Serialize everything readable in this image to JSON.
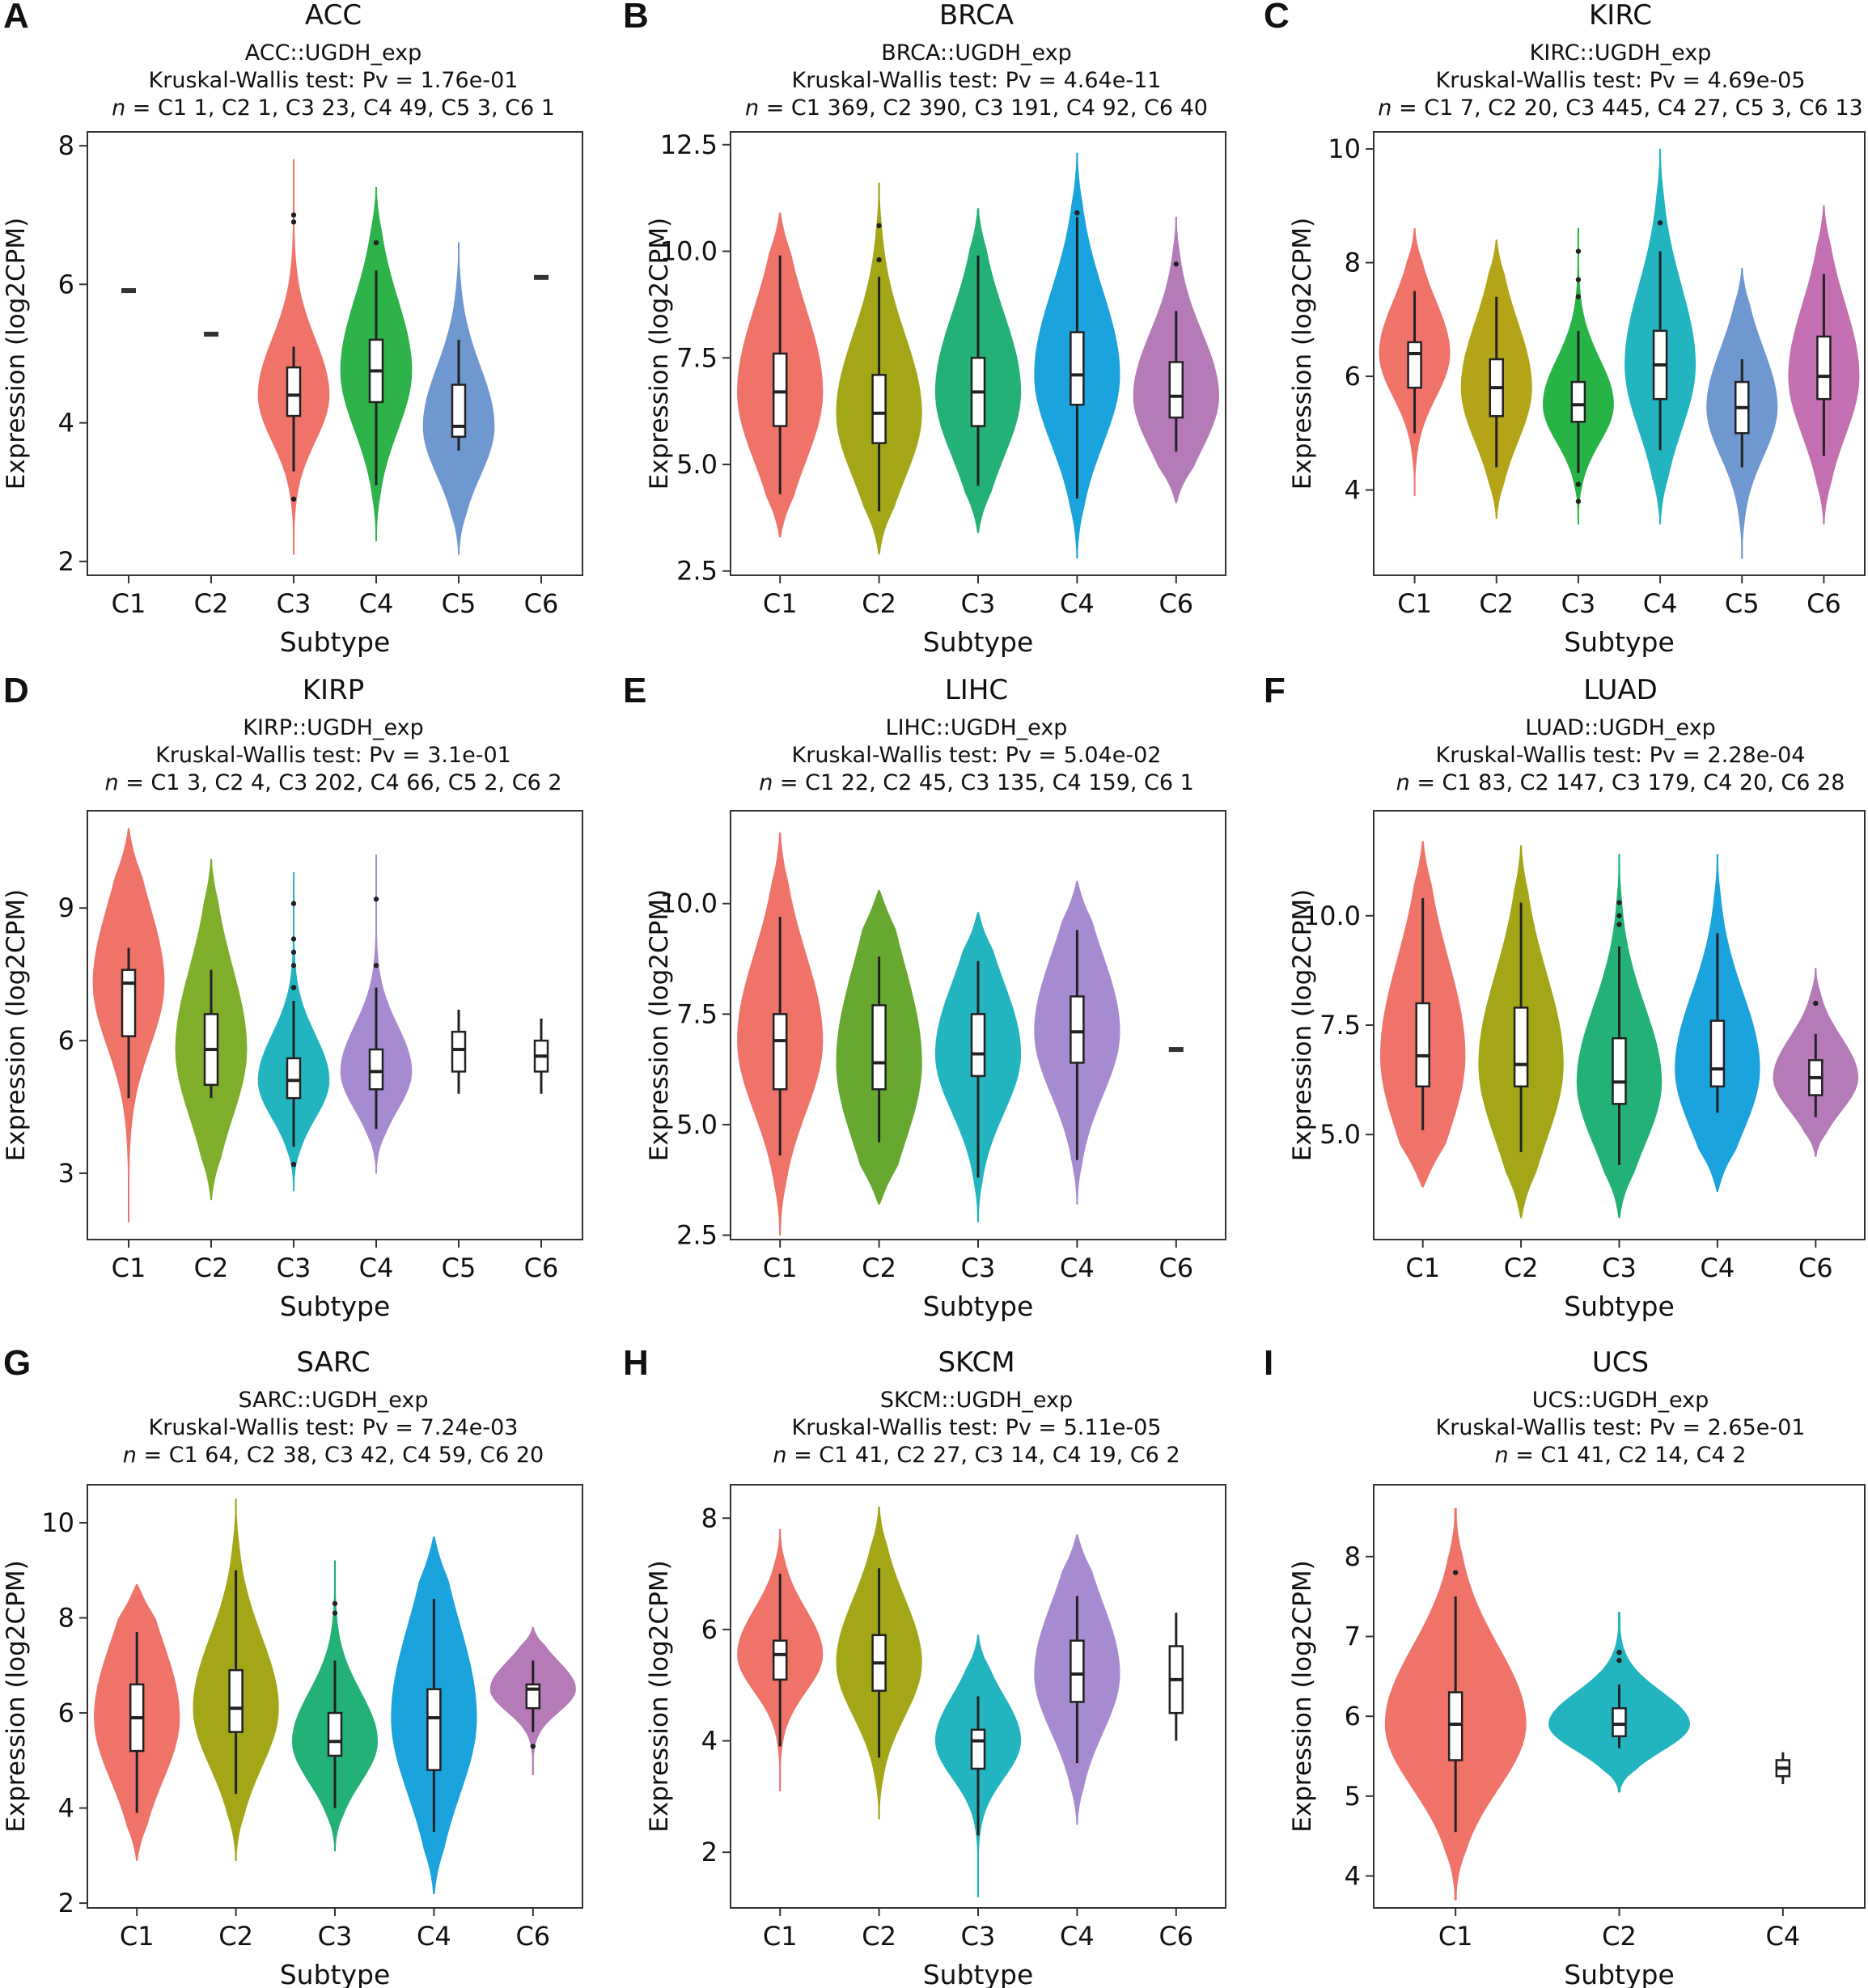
{
  "chart_data": [
    {
      "type": "violin",
      "letter": "A",
      "title": "ACC",
      "subtitle": [
        "ACC::UGDH_exp",
        "Kruskal-Wallis test: Pv = 1.76e-01"
      ],
      "n_line": "n = C1 1, C2 1, C3 23, C4 49, C5 3, C6 1",
      "xlabel": "Subtype",
      "ylabel": "Expression (log2CPM)",
      "ylim": [
        1.8,
        8.2
      ],
      "yticks": [
        2,
        4,
        6,
        8
      ],
      "series": [
        {
          "name": "C1",
          "color": "",
          "min": 5.91,
          "max": 5.91,
          "q1": 5.91,
          "median": 5.91,
          "q3": 5.91,
          "wlo": 5.91,
          "whi": 5.91,
          "outliers": []
        },
        {
          "name": "C2",
          "color": "",
          "min": 5.28,
          "max": 5.28,
          "q1": 5.28,
          "median": 5.28,
          "q3": 5.28,
          "wlo": 5.28,
          "whi": 5.28,
          "outliers": []
        },
        {
          "name": "C3",
          "color": "#f0736a",
          "min": 2.1,
          "max": 7.8,
          "q1": 4.1,
          "median": 4.4,
          "q3": 4.8,
          "wlo": 3.3,
          "whi": 5.1,
          "outliers": [
            7.0,
            6.9,
            2.9
          ]
        },
        {
          "name": "C4",
          "color": "#2eb34a",
          "min": 2.3,
          "max": 7.4,
          "q1": 4.3,
          "median": 4.75,
          "q3": 5.2,
          "wlo": 3.1,
          "whi": 6.2,
          "outliers": [
            6.6
          ]
        },
        {
          "name": "C5",
          "color": "#6f97d0",
          "min": 2.1,
          "max": 6.6,
          "q1": 3.8,
          "median": 3.95,
          "q3": 4.55,
          "wlo": 3.6,
          "whi": 5.2,
          "outliers": []
        },
        {
          "name": "C6",
          "color": "",
          "min": 6.1,
          "max": 6.1,
          "q1": 6.1,
          "median": 6.1,
          "q3": 6.1,
          "wlo": 6.1,
          "whi": 6.1,
          "outliers": []
        }
      ]
    },
    {
      "type": "violin",
      "letter": "B",
      "title": "BRCA",
      "subtitle": [
        "BRCA::UGDH_exp",
        "Kruskal-Wallis test: Pv = 4.64e-11"
      ],
      "n_line": "n = C1 369, C2 390, C3 191, C4 92, C6 40",
      "xlabel": "Subtype",
      "ylabel": "Expression (log2CPM)",
      "ylim": [
        2.4,
        12.8
      ],
      "yticks": [
        2.5,
        5.0,
        7.5,
        10.0,
        12.5
      ],
      "series": [
        {
          "name": "C1",
          "color": "#f0736a",
          "min": 3.3,
          "max": 10.9,
          "q1": 5.9,
          "median": 6.7,
          "q3": 7.6,
          "wlo": 4.3,
          "whi": 9.9,
          "outliers": []
        },
        {
          "name": "C2",
          "color": "#a3a617",
          "min": 2.9,
          "max": 11.6,
          "q1": 5.5,
          "median": 6.2,
          "q3": 7.1,
          "wlo": 3.9,
          "whi": 9.4,
          "outliers": [
            10.6,
            9.8
          ]
        },
        {
          "name": "C3",
          "color": "#23b178",
          "min": 3.4,
          "max": 11.0,
          "q1": 5.9,
          "median": 6.7,
          "q3": 7.5,
          "wlo": 4.5,
          "whi": 9.9,
          "outliers": []
        },
        {
          "name": "C4",
          "color": "#1aa3dc",
          "min": 2.8,
          "max": 12.3,
          "q1": 6.4,
          "median": 7.1,
          "q3": 8.1,
          "wlo": 4.2,
          "whi": 10.8,
          "outliers": [
            10.9
          ]
        },
        {
          "name": "C6",
          "color": "#b57ab8",
          "min": 4.1,
          "max": 10.8,
          "q1": 6.1,
          "median": 6.6,
          "q3": 7.4,
          "wlo": 5.3,
          "whi": 8.6,
          "outliers": [
            9.7
          ]
        }
      ]
    },
    {
      "type": "violin",
      "letter": "C",
      "title": "KIRC",
      "subtitle": [
        "KIRC::UGDH_exp",
        "Kruskal-Wallis test: Pv = 4.69e-05"
      ],
      "n_line": "n = C1 7, C2 20, C3 445, C4 27, C5 3, C6 13",
      "xlabel": "Subtype",
      "ylabel": "Expression (log2CPM)",
      "ylim": [
        2.5,
        10.3
      ],
      "yticks": [
        4,
        6,
        8,
        10
      ],
      "series": [
        {
          "name": "C1",
          "color": "#f0736a",
          "min": 3.9,
          "max": 8.6,
          "q1": 5.8,
          "median": 6.4,
          "q3": 6.6,
          "wlo": 5.0,
          "whi": 7.5,
          "outliers": []
        },
        {
          "name": "C2",
          "color": "#b5a417",
          "min": 3.5,
          "max": 8.4,
          "q1": 5.3,
          "median": 5.8,
          "q3": 6.3,
          "wlo": 4.4,
          "whi": 7.4,
          "outliers": []
        },
        {
          "name": "C3",
          "color": "#27b346",
          "min": 3.4,
          "max": 8.6,
          "q1": 5.2,
          "median": 5.5,
          "q3": 5.9,
          "wlo": 4.3,
          "whi": 6.8,
          "outliers": [
            8.2,
            7.7,
            7.4,
            4.1,
            3.8
          ]
        },
        {
          "name": "C4",
          "color": "#22b5c0",
          "min": 3.4,
          "max": 10.0,
          "q1": 5.6,
          "median": 6.2,
          "q3": 6.8,
          "wlo": 4.7,
          "whi": 8.2,
          "outliers": [
            8.7
          ]
        },
        {
          "name": "C5",
          "color": "#6f97d0",
          "min": 2.8,
          "max": 7.9,
          "q1": 5.0,
          "median": 5.45,
          "q3": 5.9,
          "wlo": 4.4,
          "whi": 6.3,
          "outliers": []
        },
        {
          "name": "C6",
          "color": "#c36fb2",
          "min": 3.4,
          "max": 9.0,
          "q1": 5.6,
          "median": 6.0,
          "q3": 6.7,
          "wlo": 4.6,
          "whi": 7.8,
          "outliers": []
        }
      ]
    },
    {
      "type": "violin",
      "letter": "D",
      "title": "KIRP",
      "subtitle": [
        "KIRP::UGDH_exp",
        "Kruskal-Wallis test: Pv = 3.1e-01"
      ],
      "n_line": "n = C1 3, C2 4, C3 202, C4 66, C5 2, C6 2",
      "xlabel": "Subtype",
      "ylabel": "Expression (log2CPM)",
      "ylim": [
        1.5,
        11.2
      ],
      "yticks": [
        3,
        6,
        9
      ],
      "series": [
        {
          "name": "C1",
          "color": "#f0736a",
          "min": 1.9,
          "max": 10.8,
          "q1": 6.1,
          "median": 7.3,
          "q3": 7.6,
          "wlo": 4.7,
          "whi": 8.1,
          "outliers": []
        },
        {
          "name": "C2",
          "color": "#7fae2a",
          "min": 2.4,
          "max": 10.1,
          "q1": 5.0,
          "median": 5.8,
          "q3": 6.6,
          "wlo": 4.7,
          "whi": 7.6,
          "outliers": []
        },
        {
          "name": "C3",
          "color": "#22b5c0",
          "min": 2.6,
          "max": 9.8,
          "q1": 4.7,
          "median": 5.1,
          "q3": 5.6,
          "wlo": 3.6,
          "whi": 6.9,
          "outliers": [
            9.1,
            8.3,
            8.0,
            7.7,
            7.2,
            3.2
          ]
        },
        {
          "name": "C4",
          "color": "#a78bd0",
          "min": 3.0,
          "max": 10.2,
          "q1": 4.9,
          "median": 5.3,
          "q3": 5.8,
          "wlo": 4.0,
          "whi": 7.2,
          "outliers": [
            9.2,
            7.7
          ]
        },
        {
          "name": "C5",
          "color": "",
          "min": 5.3,
          "max": 6.4,
          "q1": 5.3,
          "median": 5.8,
          "q3": 6.2,
          "wlo": 4.8,
          "whi": 6.7,
          "outliers": []
        },
        {
          "name": "C6",
          "color": "",
          "min": 5.3,
          "max": 6.1,
          "q1": 5.3,
          "median": 5.65,
          "q3": 6.0,
          "wlo": 4.8,
          "whi": 6.5,
          "outliers": []
        }
      ]
    },
    {
      "type": "violin",
      "letter": "E",
      "title": "LIHC",
      "subtitle": [
        "LIHC::UGDH_exp",
        "Kruskal-Wallis test: Pv = 5.04e-02"
      ],
      "n_line": "n = C1 22, C2 45, C3 135, C4 159, C6 1",
      "xlabel": "Subtype",
      "ylabel": "Expression (log2CPM)",
      "ylim": [
        2.4,
        12.1
      ],
      "yticks": [
        2.5,
        5.0,
        7.5,
        10.0
      ],
      "series": [
        {
          "name": "C1",
          "color": "#f0736a",
          "min": 2.5,
          "max": 11.6,
          "q1": 5.8,
          "median": 6.9,
          "q3": 7.5,
          "wlo": 4.3,
          "whi": 9.7,
          "outliers": []
        },
        {
          "name": "C2",
          "color": "#67a830",
          "min": 3.2,
          "max": 10.3,
          "q1": 5.8,
          "median": 6.4,
          "q3": 7.7,
          "wlo": 4.6,
          "whi": 8.8,
          "outliers": []
        },
        {
          "name": "C3",
          "color": "#22b5bf",
          "min": 2.8,
          "max": 9.8,
          "q1": 6.1,
          "median": 6.6,
          "q3": 7.5,
          "wlo": 3.8,
          "whi": 8.7,
          "outliers": []
        },
        {
          "name": "C4",
          "color": "#a78bd0",
          "min": 3.2,
          "max": 10.5,
          "q1": 6.4,
          "median": 7.1,
          "q3": 7.9,
          "wlo": 4.2,
          "whi": 9.4,
          "outliers": []
        },
        {
          "name": "C6",
          "color": "",
          "min": 6.7,
          "max": 6.7,
          "q1": 6.7,
          "median": 6.7,
          "q3": 6.7,
          "wlo": 6.7,
          "whi": 6.7,
          "outliers": []
        }
      ]
    },
    {
      "type": "violin",
      "letter": "F",
      "title": "LUAD",
      "subtitle": [
        "LUAD::UGDH_exp",
        "Kruskal-Wallis test: Pv = 2.28e-04"
      ],
      "n_line": "n = C1 83, C2 147, C3 179, C4 20, C6 28",
      "xlabel": "Subtype",
      "ylabel": "Expression (log2CPM)",
      "ylim": [
        2.6,
        12.4
      ],
      "yticks": [
        5.0,
        7.5,
        10.0
      ],
      "series": [
        {
          "name": "C1",
          "color": "#f0736a",
          "min": 3.8,
          "max": 11.7,
          "q1": 6.1,
          "median": 6.8,
          "q3": 8.0,
          "wlo": 5.1,
          "whi": 10.4,
          "outliers": []
        },
        {
          "name": "C2",
          "color": "#a3a617",
          "min": 3.1,
          "max": 11.6,
          "q1": 6.1,
          "median": 6.6,
          "q3": 7.9,
          "wlo": 4.6,
          "whi": 10.3,
          "outliers": []
        },
        {
          "name": "C3",
          "color": "#23b178",
          "min": 3.1,
          "max": 11.4,
          "q1": 5.7,
          "median": 6.2,
          "q3": 7.2,
          "wlo": 4.3,
          "whi": 9.3,
          "outliers": [
            10.3,
            10.0,
            9.8
          ]
        },
        {
          "name": "C4",
          "color": "#1aa3dc",
          "min": 3.7,
          "max": 11.4,
          "q1": 6.1,
          "median": 6.5,
          "q3": 7.6,
          "wlo": 5.5,
          "whi": 9.6,
          "outliers": []
        },
        {
          "name": "C6",
          "color": "#b57ab8",
          "min": 4.5,
          "max": 8.8,
          "q1": 5.9,
          "median": 6.3,
          "q3": 6.7,
          "wlo": 5.4,
          "whi": 7.3,
          "outliers": [
            8.0
          ]
        }
      ]
    },
    {
      "type": "violin",
      "letter": "G",
      "title": "SARC",
      "subtitle": [
        "SARC::UGDH_exp",
        "Kruskal-Wallis test: Pv = 7.24e-03"
      ],
      "n_line": "n = C1 64, C2 38, C3 42, C4 59, C6 20",
      "xlabel": "Subtype",
      "ylabel": "Expression (log2CPM)",
      "ylim": [
        1.9,
        10.8
      ],
      "yticks": [
        2,
        4,
        6,
        8,
        10
      ],
      "series": [
        {
          "name": "C1",
          "color": "#f0736a",
          "min": 2.9,
          "max": 8.7,
          "q1": 5.2,
          "median": 5.9,
          "q3": 6.6,
          "wlo": 3.9,
          "whi": 7.7,
          "outliers": []
        },
        {
          "name": "C2",
          "color": "#a3a617",
          "min": 2.9,
          "max": 10.5,
          "q1": 5.6,
          "median": 6.1,
          "q3": 6.9,
          "wlo": 4.3,
          "whi": 9.0,
          "outliers": []
        },
        {
          "name": "C3",
          "color": "#23b178",
          "min": 3.1,
          "max": 9.2,
          "q1": 5.1,
          "median": 5.4,
          "q3": 6.0,
          "wlo": 4.0,
          "whi": 7.1,
          "outliers": [
            8.3,
            8.1
          ]
        },
        {
          "name": "C4",
          "color": "#1aa3dc",
          "min": 2.2,
          "max": 9.7,
          "q1": 4.8,
          "median": 5.9,
          "q3": 6.5,
          "wlo": 3.5,
          "whi": 8.4,
          "outliers": []
        },
        {
          "name": "C6",
          "color": "#b57ab8",
          "min": 4.7,
          "max": 7.8,
          "q1": 6.1,
          "median": 6.5,
          "q3": 6.6,
          "wlo": 5.6,
          "whi": 7.1,
          "outliers": [
            5.3
          ]
        }
      ]
    },
    {
      "type": "violin",
      "letter": "H",
      "title": "SKCM",
      "subtitle": [
        "SKCM::UGDH_exp",
        "Kruskal-Wallis test: Pv = 5.11e-05"
      ],
      "n_line": "n = C1 41, C2 27, C3 14, C4 19, C6 2",
      "xlabel": "Subtype",
      "ylabel": "Expression (log2CPM)",
      "ylim": [
        1.0,
        8.6
      ],
      "yticks": [
        2,
        4,
        6,
        8
      ],
      "series": [
        {
          "name": "C1",
          "color": "#f0736a",
          "min": 3.1,
          "max": 7.8,
          "q1": 5.1,
          "median": 5.55,
          "q3": 5.8,
          "wlo": 3.9,
          "whi": 7.0,
          "outliers": []
        },
        {
          "name": "C2",
          "color": "#a3a617",
          "min": 2.6,
          "max": 8.2,
          "q1": 4.9,
          "median": 5.4,
          "q3": 5.9,
          "wlo": 3.7,
          "whi": 7.1,
          "outliers": []
        },
        {
          "name": "C3",
          "color": "#22b5bf",
          "min": 1.2,
          "max": 5.9,
          "q1": 3.5,
          "median": 4.0,
          "q3": 4.2,
          "wlo": 2.3,
          "whi": 4.8,
          "outliers": []
        },
        {
          "name": "C4",
          "color": "#a78bd0",
          "min": 2.5,
          "max": 7.7,
          "q1": 4.7,
          "median": 5.2,
          "q3": 5.8,
          "wlo": 3.6,
          "whi": 6.6,
          "outliers": []
        },
        {
          "name": "C6",
          "color": "",
          "min": 4.5,
          "max": 5.7,
          "q1": 4.5,
          "median": 5.1,
          "q3": 5.7,
          "wlo": 4.0,
          "whi": 6.3,
          "outliers": []
        }
      ]
    },
    {
      "type": "violin",
      "letter": "I",
      "title": "UCS",
      "subtitle": [
        "UCS::UGDH_exp",
        "Kruskal-Wallis test: Pv = 2.65e-01"
      ],
      "n_line": "n = C1 41, C2 14, C4 2",
      "xlabel": "Subtype",
      "ylabel": "Expression (log2CPM)",
      "ylim": [
        3.6,
        8.9
      ],
      "yticks": [
        4,
        5,
        6,
        7,
        8
      ],
      "series": [
        {
          "name": "C1",
          "color": "#f0736a",
          "min": 3.7,
          "max": 8.6,
          "q1": 5.45,
          "median": 5.9,
          "q3": 6.3,
          "wlo": 4.55,
          "whi": 7.5,
          "outliers": [
            7.8
          ]
        },
        {
          "name": "C2",
          "color": "#22b5bf",
          "min": 5.05,
          "max": 7.3,
          "q1": 5.75,
          "median": 5.9,
          "q3": 6.1,
          "wlo": 5.6,
          "whi": 6.4,
          "outliers": [
            6.8,
            6.7
          ]
        },
        {
          "name": "C4",
          "color": "",
          "min": 5.25,
          "max": 5.45,
          "q1": 5.25,
          "median": 5.35,
          "q3": 5.45,
          "wlo": 5.15,
          "whi": 5.55,
          "outliers": []
        }
      ]
    }
  ]
}
